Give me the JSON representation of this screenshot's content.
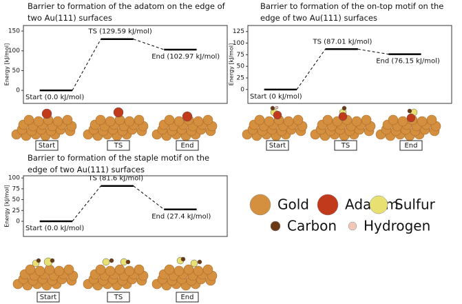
{
  "chart_data": [
    {
      "type": "line",
      "title": "Barrier to formation of the adatom on the edge of two Au(111) surfaces",
      "ylabel": "Energy [kJ/mol]",
      "categories": [
        "Start",
        "TS",
        "End"
      ],
      "values": [
        0.0,
        129.59,
        102.97
      ],
      "value_labels": [
        "Start (0.0 kJ/mol)",
        "TS (129.59 kJ/mol)",
        "End (102.97 kJ/mol)"
      ],
      "ylim": [
        -33,
        164
      ],
      "yticks": [
        0,
        50,
        100,
        150
      ],
      "color": "#000000"
    },
    {
      "type": "line",
      "title": "Barrier to formation of the on-top motif on the edge of two Au(111) surfaces",
      "ylabel": "Energy [kJ/mol]",
      "categories": [
        "Start",
        "TS",
        "End"
      ],
      "values": [
        0,
        87.01,
        76.15
      ],
      "value_labels": [
        "Start (0 kJ/mol)",
        "TS (87.01 kJ/mol)",
        "End (76.15 kJ/mol)"
      ],
      "ylim": [
        -30,
        138
      ],
      "yticks": [
        0,
        25,
        50,
        75,
        100,
        125
      ],
      "color": "#000000"
    },
    {
      "type": "line",
      "title": "Barrier to formation of the staple motif on the edge of two Au(111) surfaces",
      "ylabel": "Energy [kJ/mol]",
      "categories": [
        "Start",
        "TS",
        "End"
      ],
      "values": [
        0.0,
        81.6,
        27.4
      ],
      "value_labels": [
        "Start (0.0 kJ/mol)",
        "TS (81.6 kJ/mol)",
        "End (27.4 kJ/mol)"
      ],
      "ylim": [
        -35,
        105
      ],
      "yticks": [
        0,
        25,
        50,
        75,
        100
      ],
      "color": "#000000"
    }
  ],
  "legend": [
    {
      "name": "Gold",
      "color": "#d4903e"
    },
    {
      "name": "Adatom",
      "color": "#c23a1c"
    },
    {
      "name": "Sulfur",
      "color": "#e8e070"
    },
    {
      "name": "Carbon",
      "color": "#6b3a14"
    },
    {
      "name": "Hydrogen",
      "color": "#f0c8b8"
    }
  ]
}
